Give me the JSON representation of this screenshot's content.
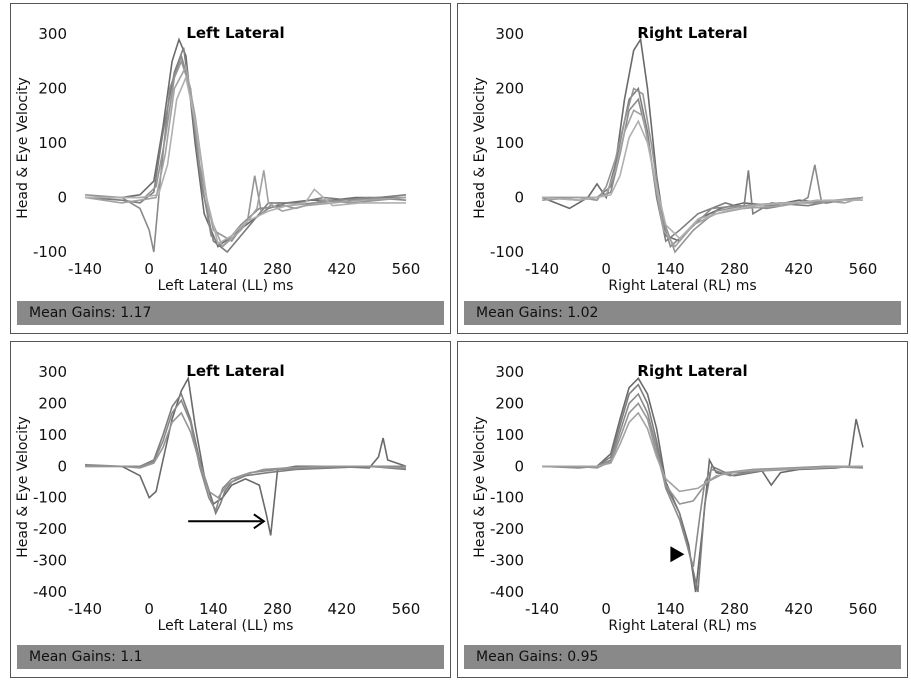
{
  "chart_data": [
    {
      "type": "line",
      "title": "Left Lateral",
      "xlabel": "Left Lateral (LL) ms",
      "ylabel": "Head & Eye Velocity",
      "xlim": [
        -140,
        560
      ],
      "ylim": [
        -100,
        300
      ],
      "xticks": [
        "-140",
        "0",
        "140",
        "280",
        "420",
        "560"
      ],
      "yticks": [
        "300",
        "200",
        "100",
        "0",
        "-100"
      ],
      "mean_gains": "Mean Gains: 1.17",
      "series": [
        {
          "x": [
            -140,
            -60,
            -20,
            10,
            30,
            50,
            65,
            80,
            100,
            120,
            150,
            180,
            220,
            260,
            300,
            350,
            400,
            450,
            500,
            560
          ],
          "y": [
            0,
            0,
            5,
            30,
            130,
            250,
            290,
            260,
            100,
            -30,
            -90,
            -70,
            -45,
            -20,
            -10,
            -5,
            -5,
            0,
            0,
            0
          ]
        },
        {
          "x": [
            -140,
            -60,
            -20,
            10,
            30,
            55,
            75,
            95,
            115,
            140,
            170,
            210,
            260,
            320,
            380,
            440,
            500,
            560
          ],
          "y": [
            0,
            -5,
            -10,
            10,
            120,
            230,
            275,
            150,
            20,
            -80,
            -100,
            -60,
            -10,
            -10,
            0,
            -5,
            0,
            5
          ]
        },
        {
          "x": [
            -140,
            -60,
            -20,
            0,
            10,
            25,
            45,
            70,
            90,
            110,
            135,
            160,
            200,
            240,
            300,
            360,
            420,
            480,
            560
          ],
          "y": [
            0,
            0,
            -20,
            -60,
            -100,
            40,
            200,
            260,
            200,
            50,
            -70,
            -90,
            -50,
            -20,
            -15,
            -10,
            -5,
            0,
            -5
          ]
        },
        {
          "x": [
            -140,
            -60,
            -10,
            15,
            35,
            55,
            70,
            90,
            110,
            140,
            180,
            215,
            230,
            245,
            270,
            320,
            380,
            440,
            500,
            560
          ],
          "y": [
            5,
            0,
            0,
            20,
            110,
            220,
            250,
            200,
            60,
            -60,
            -80,
            -40,
            40,
            -30,
            -10,
            -20,
            -5,
            -10,
            -5,
            0
          ]
        },
        {
          "x": [
            -140,
            -60,
            -20,
            15,
            35,
            55,
            80,
            100,
            130,
            160,
            200,
            235,
            250,
            260,
            290,
            340,
            400,
            460,
            560
          ],
          "y": [
            0,
            -10,
            -5,
            0,
            80,
            200,
            240,
            150,
            -30,
            -90,
            -60,
            -20,
            50,
            -10,
            -25,
            -15,
            -10,
            -5,
            0
          ]
        },
        {
          "x": [
            -140,
            -60,
            -20,
            20,
            40,
            60,
            80,
            100,
            125,
            150,
            180,
            210,
            260,
            300,
            340,
            360,
            400,
            460,
            560
          ],
          "y": [
            0,
            0,
            0,
            5,
            60,
            180,
            220,
            140,
            0,
            -85,
            -70,
            -45,
            -25,
            -15,
            -10,
            15,
            -15,
            -10,
            -10
          ]
        }
      ]
    },
    {
      "type": "line",
      "title": "Right Lateral",
      "xlabel": "Right Lateral (RL) ms",
      "ylabel": "Head & Eye Velocity",
      "xlim": [
        -140,
        560
      ],
      "ylim": [
        -100,
        300
      ],
      "xticks": [
        "-140",
        "0",
        "140",
        "280",
        "420",
        "560"
      ],
      "yticks": [
        "300",
        "200",
        "100",
        "0",
        "-100"
      ],
      "mean_gains": "Mean Gains: 1.02",
      "series": [
        {
          "x": [
            -140,
            -80,
            -40,
            -20,
            0,
            20,
            40,
            60,
            75,
            90,
            110,
            130,
            160,
            200,
            250,
            300,
            360,
            420,
            480,
            560
          ],
          "y": [
            0,
            -20,
            0,
            25,
            0,
            60,
            180,
            270,
            290,
            200,
            40,
            -70,
            -80,
            -40,
            -20,
            -10,
            -15,
            -5,
            -10,
            0
          ]
        },
        {
          "x": [
            -140,
            -60,
            -20,
            10,
            30,
            50,
            70,
            90,
            110,
            130,
            160,
            200,
            260,
            300,
            310,
            320,
            360,
            440,
            500,
            560
          ],
          "y": [
            0,
            -5,
            0,
            20,
            100,
            180,
            200,
            120,
            0,
            -80,
            -60,
            -30,
            -10,
            -20,
            50,
            -30,
            -10,
            -15,
            -5,
            -5
          ]
        },
        {
          "x": [
            -140,
            -60,
            -20,
            10,
            30,
            50,
            70,
            90,
            115,
            140,
            180,
            230,
            290,
            350,
            420,
            440,
            455,
            470,
            500,
            560
          ],
          "y": [
            0,
            0,
            0,
            10,
            80,
            160,
            180,
            110,
            -20,
            -90,
            -60,
            -20,
            -15,
            -20,
            -10,
            0,
            60,
            -10,
            -5,
            0
          ]
        },
        {
          "x": [
            -140,
            -60,
            -20,
            0,
            20,
            40,
            60,
            80,
            100,
            120,
            150,
            190,
            240,
            300,
            380,
            460,
            520,
            560
          ],
          "y": [
            0,
            0,
            -5,
            20,
            70,
            140,
            200,
            190,
            90,
            -30,
            -100,
            -60,
            -25,
            -15,
            -10,
            -10,
            -5,
            0
          ]
        },
        {
          "x": [
            -140,
            -60,
            -20,
            0,
            20,
            40,
            60,
            80,
            100,
            125,
            150,
            190,
            240,
            300,
            380,
            460,
            520,
            560
          ],
          "y": [
            -5,
            0,
            0,
            5,
            50,
            120,
            160,
            150,
            60,
            -60,
            -90,
            -50,
            -30,
            -20,
            -15,
            -5,
            -10,
            0
          ]
        },
        {
          "x": [
            -140,
            -60,
            -20,
            10,
            30,
            50,
            70,
            90,
            110,
            130,
            160,
            200,
            260,
            320,
            400,
            480,
            560
          ],
          "y": [
            0,
            -5,
            0,
            5,
            40,
            110,
            140,
            100,
            20,
            -50,
            -75,
            -40,
            -25,
            -15,
            -10,
            -5,
            -5
          ]
        }
      ]
    },
    {
      "type": "line",
      "title": "Left Lateral",
      "xlabel": "Left Lateral (LL) ms",
      "ylabel": "Head & Eye Velocity",
      "xlim": [
        -140,
        560
      ],
      "ylim": [
        -400,
        300
      ],
      "xticks": [
        "-140",
        "0",
        "140",
        "280",
        "420",
        "560"
      ],
      "yticks": [
        "300",
        "200",
        "100",
        "0",
        "-100",
        "-200",
        "-300",
        "-400"
      ],
      "mean_gains": "Mean Gains: 1.1",
      "annotation": "arrow",
      "series": [
        {
          "x": [
            -140,
            -60,
            -20,
            0,
            15,
            30,
            50,
            70,
            85,
            100,
            120,
            140,
            160,
            180,
            210,
            240,
            255,
            265,
            280,
            320,
            400,
            480,
            500,
            510,
            520,
            560
          ],
          "y": [
            0,
            0,
            -30,
            -100,
            -80,
            20,
            150,
            240,
            280,
            130,
            -30,
            -120,
            -100,
            -60,
            -40,
            -60,
            -150,
            -220,
            -10,
            0,
            0,
            -5,
            30,
            90,
            20,
            0
          ]
        },
        {
          "x": [
            -140,
            -60,
            -20,
            10,
            30,
            50,
            70,
            90,
            110,
            130,
            145,
            155,
            165,
            180,
            210,
            260,
            320,
            400,
            480,
            560
          ],
          "y": [
            0,
            0,
            0,
            20,
            100,
            190,
            230,
            150,
            20,
            -80,
            -150,
            -120,
            -80,
            -50,
            -30,
            -20,
            -10,
            -5,
            0,
            -10
          ]
        },
        {
          "x": [
            -140,
            -60,
            -20,
            10,
            30,
            50,
            70,
            90,
            110,
            130,
            145,
            160,
            180,
            220,
            280,
            350,
            420,
            500,
            560
          ],
          "y": [
            5,
            0,
            0,
            15,
            80,
            170,
            210,
            140,
            0,
            -100,
            -140,
            -70,
            -40,
            -20,
            -10,
            -5,
            0,
            0,
            0
          ]
        },
        {
          "x": [
            -140,
            -60,
            -20,
            10,
            30,
            50,
            70,
            90,
            110,
            130,
            150,
            170,
            200,
            250,
            300,
            380,
            460,
            560
          ],
          "y": [
            0,
            0,
            -5,
            10,
            60,
            140,
            170,
            110,
            10,
            -80,
            -100,
            -60,
            -30,
            -10,
            -5,
            0,
            0,
            -5
          ]
        }
      ]
    },
    {
      "type": "line",
      "title": "Right Lateral",
      "xlabel": "Right Lateral (RL) ms",
      "ylabel": "Head & Eye Velocity",
      "xlim": [
        -140,
        560
      ],
      "ylim": [
        -400,
        300
      ],
      "xticks": [
        "-140",
        "0",
        "140",
        "280",
        "420",
        "560"
      ],
      "yticks": [
        "300",
        "200",
        "100",
        "0",
        "-100",
        "-200",
        "-300",
        "-400"
      ],
      "mean_gains": "Mean Gains: 0.95",
      "annotation": "arrowhead",
      "series": [
        {
          "x": [
            -140,
            -60,
            -20,
            10,
            30,
            50,
            70,
            90,
            110,
            130,
            160,
            180,
            195,
            210,
            225,
            240,
            280,
            340,
            360,
            380,
            420,
            500,
            530,
            545,
            560
          ],
          "y": [
            0,
            0,
            0,
            40,
            150,
            250,
            280,
            230,
            120,
            -50,
            -150,
            -250,
            -400,
            -200,
            20,
            -20,
            -30,
            -15,
            -60,
            -20,
            -10,
            -5,
            0,
            150,
            60
          ]
        },
        {
          "x": [
            -140,
            -60,
            -20,
            10,
            30,
            50,
            70,
            90,
            110,
            130,
            160,
            185,
            200,
            215,
            230,
            260,
            300,
            360,
            440,
            500,
            560
          ],
          "y": [
            0,
            0,
            0,
            30,
            130,
            230,
            260,
            200,
            80,
            -60,
            -150,
            -300,
            -400,
            -120,
            0,
            -20,
            -20,
            -10,
            -5,
            0,
            0
          ]
        },
        {
          "x": [
            -140,
            -60,
            -20,
            10,
            30,
            50,
            70,
            90,
            110,
            130,
            160,
            190,
            205,
            215,
            230,
            270,
            330,
            400,
            480,
            560
          ],
          "y": [
            0,
            -5,
            0,
            20,
            110,
            200,
            230,
            170,
            60,
            -70,
            -170,
            -320,
            -150,
            -50,
            -10,
            -30,
            -15,
            -10,
            0,
            -5
          ]
        },
        {
          "x": [
            -140,
            -60,
            -20,
            10,
            30,
            50,
            70,
            90,
            110,
            130,
            160,
            190,
            220,
            260,
            320,
            400,
            480,
            560
          ],
          "y": [
            0,
            0,
            -5,
            15,
            90,
            170,
            200,
            150,
            40,
            -60,
            -120,
            -110,
            -50,
            -20,
            -10,
            -5,
            0,
            0
          ]
        },
        {
          "x": [
            -140,
            -60,
            -20,
            10,
            30,
            50,
            70,
            90,
            110,
            130,
            160,
            200,
            240,
            300,
            380,
            460,
            540,
            560
          ],
          "y": [
            0,
            0,
            0,
            10,
            70,
            140,
            170,
            120,
            30,
            -40,
            -80,
            -70,
            -30,
            -15,
            -10,
            -5,
            0,
            0
          ]
        }
      ]
    }
  ]
}
